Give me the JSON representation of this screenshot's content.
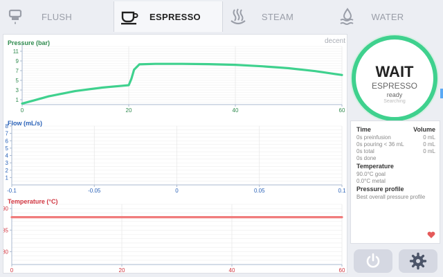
{
  "tabs": [
    {
      "label": "FLUSH",
      "icon": "flush-icon",
      "active": false
    },
    {
      "label": "ESPRESSO",
      "icon": "espresso-cup-icon",
      "active": true
    },
    {
      "label": "STEAM",
      "icon": "steam-icon",
      "active": false
    },
    {
      "label": "WATER",
      "icon": "water-icon",
      "active": false
    }
  ],
  "brand": "decent",
  "dial": {
    "status": "WAIT",
    "mode": "ESPRESSO",
    "state": "ready",
    "substate": "Searching",
    "ring_color": "#3fd18e"
  },
  "info": {
    "time_header": "Time",
    "volume_header": "Volume",
    "rows": [
      {
        "label": "0s preinfusion",
        "value": "0 mL"
      },
      {
        "label": "0s pouring < 36 mL",
        "value": "0 mL"
      },
      {
        "label": "0s total",
        "value": "0 mL"
      },
      {
        "label": "0s done",
        "value": ""
      }
    ],
    "temperature_header": "Temperature",
    "temperature_goal": "90.0°C goal",
    "temperature_metal": "0.0°C metal",
    "profile_header": "Pressure profile",
    "profile_name": "Best overall pressure profile"
  },
  "buttons": {
    "power": "power-icon",
    "settings": "gear-icon"
  },
  "colors": {
    "pressure": "#3fd18e",
    "flow_label": "#2a62b8",
    "temperature": "#f07c7c",
    "temp_label": "#d0343f",
    "heart": "#e55a5a"
  },
  "chart_data": [
    {
      "type": "line",
      "title": "Pressure (bar)",
      "xlim": [
        0,
        60
      ],
      "ylim": [
        0,
        12
      ],
      "x_ticks": [
        "0",
        "20",
        "40",
        "60"
      ],
      "y_ticks": [
        "1",
        "3",
        "5",
        "7",
        "9",
        "11"
      ],
      "series": [
        {
          "x": [
            0,
            2,
            5,
            10,
            15,
            19,
            20,
            20.5,
            21,
            22,
            25,
            30,
            35,
            40,
            45,
            50,
            55,
            60
          ],
          "y": [
            0.2,
            0.8,
            1.7,
            2.8,
            3.5,
            3.9,
            4.0,
            5.3,
            7.2,
            8.3,
            8.4,
            8.4,
            8.35,
            8.2,
            7.9,
            7.5,
            6.9,
            6.1
          ]
        }
      ]
    },
    {
      "type": "line",
      "title": "Flow (mL/s)",
      "xlim": [
        -0.1,
        0.1
      ],
      "ylim": [
        0,
        8
      ],
      "x_ticks": [
        "-0.1",
        "-0.05",
        "0",
        "0.05",
        "0.1"
      ],
      "y_ticks": [
        "1",
        "2",
        "3",
        "4",
        "5",
        "6",
        "7",
        "8"
      ],
      "series": []
    },
    {
      "type": "line",
      "title": "Temperature (°C)",
      "xlim": [
        0,
        60
      ],
      "ylim": [
        77,
        91
      ],
      "x_ticks": [
        "0",
        "20",
        "40",
        "60"
      ],
      "y_ticks": [
        "80",
        "85",
        "90"
      ],
      "series": [
        {
          "x": [
            0,
            60
          ],
          "y": [
            88,
            88
          ]
        }
      ]
    }
  ]
}
